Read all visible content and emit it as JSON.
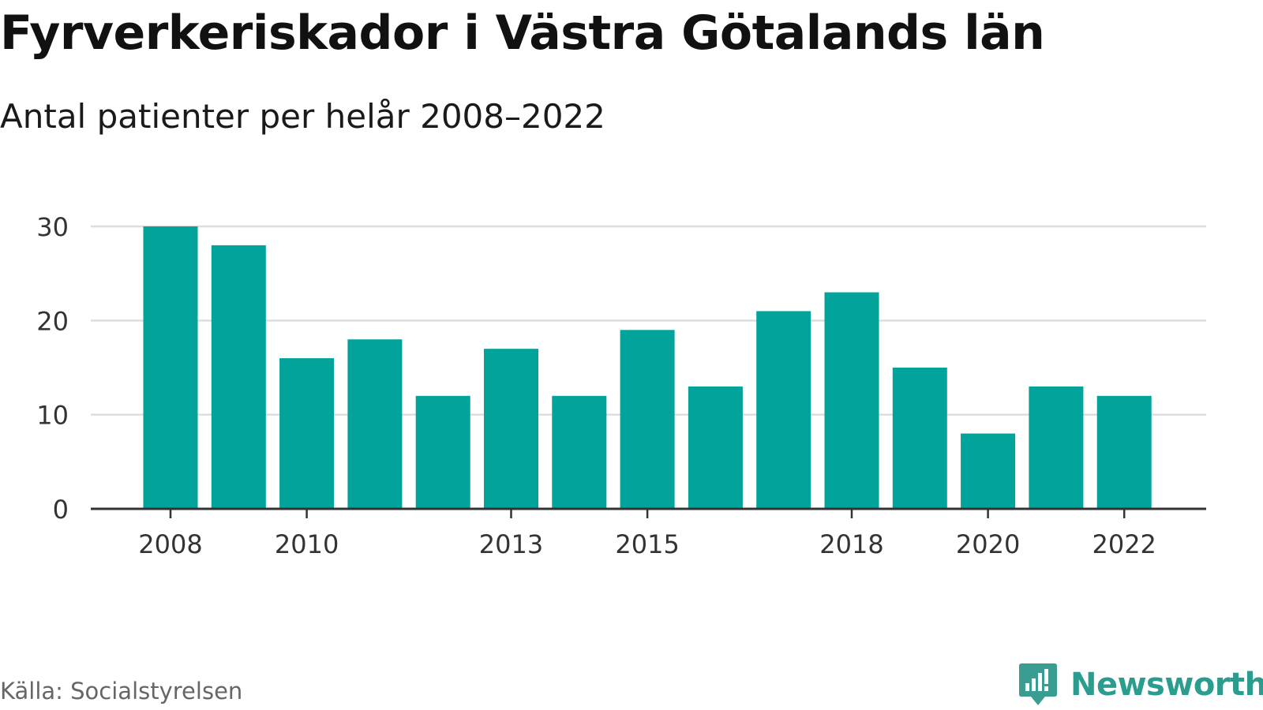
{
  "title": "Fyrverkeriskador i Västra Götalands län",
  "subtitle": "Antal patienter per helår 2008–2022",
  "source": "Källa: Socialstyrelsen",
  "brand": {
    "name": "Newsworthy",
    "icon": "newsworthy-logo-icon",
    "color": "#3a9d91"
  },
  "colors": {
    "bar": "#02a39a",
    "grid": "#dddddd",
    "axis": "#333333",
    "tick_text": "#333333"
  },
  "chart_data": {
    "type": "bar",
    "title": "Fyrverkeriskador i Västra Götalands län",
    "subtitle": "Antal patienter per helår 2008–2022",
    "categories": [
      2008,
      2009,
      2010,
      2011,
      2012,
      2013,
      2014,
      2015,
      2016,
      2017,
      2018,
      2019,
      2020,
      2021,
      2022
    ],
    "values": [
      30,
      28,
      16,
      18,
      12,
      17,
      12,
      19,
      13,
      21,
      23,
      15,
      8,
      13,
      12
    ],
    "x_tick_labels": [
      "2008",
      "2010",
      "2013",
      "2015",
      "2018",
      "2020",
      "2022"
    ],
    "y_ticks": [
      0,
      10,
      20,
      30
    ],
    "ylim": [
      0,
      30
    ],
    "xlabel": "",
    "ylabel": "",
    "grid": true,
    "legend": "none"
  }
}
